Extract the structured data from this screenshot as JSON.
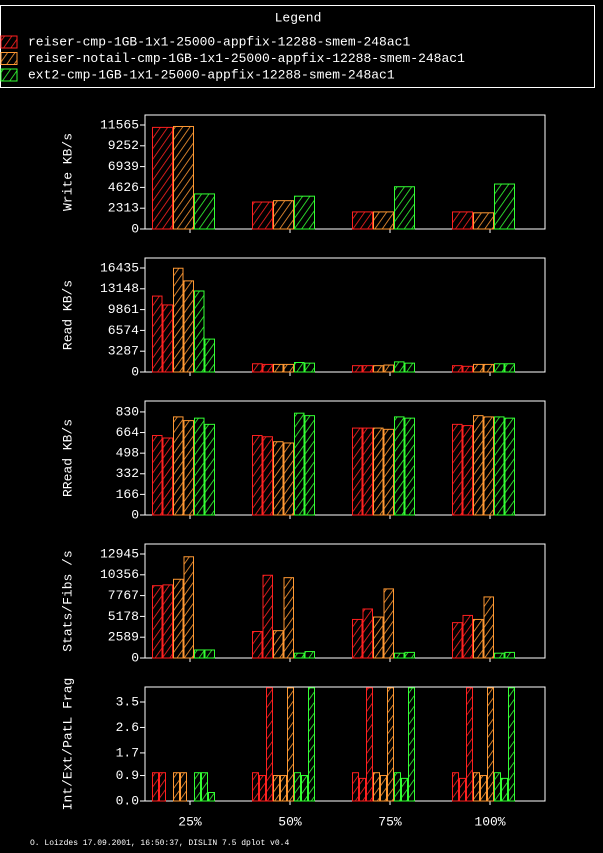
{
  "chart_data": [
    {
      "type": "bar",
      "legend_title": "Legend",
      "ylabel": "Write KB/s",
      "ylim": [
        0,
        12677
      ],
      "yticks": [
        0,
        2313,
        4626,
        6939,
        9252,
        11565
      ],
      "series": [
        {
          "name": "reiser-cmp-1GB-1x1-25000-appfix-12288-smem-248ac1",
          "color": "#ff2020",
          "values": [
            [
              11300
            ],
            [
              3000
            ],
            [
              1900
            ],
            [
              1900
            ]
          ]
        },
        {
          "name": "reiser-notail-cmp-1GB-1x1-25000-appfix-12288-smem-248ac1",
          "color": "#ff9933",
          "values": [
            [
              11400
            ],
            [
              3150
            ],
            [
              1900
            ],
            [
              1800
            ]
          ]
        },
        {
          "name": "ext2-cmp-1GB-1x1-25000-appfix-12288-smem-248ac1",
          "color": "#33ff33",
          "values": [
            [
              3900
            ],
            [
              3650
            ],
            [
              4700
            ],
            [
              5000
            ]
          ]
        }
      ]
    },
    {
      "type": "bar",
      "ylabel": "Read KB/s",
      "ylim": [
        0,
        18016
      ],
      "yticks": [
        0,
        3287,
        6574,
        9861,
        13148,
        16435
      ],
      "series": [
        {
          "color": "#ff2020",
          "values": [
            [
              12000,
              10600
            ],
            [
              1300,
              1200
            ],
            [
              1000,
              1000
            ],
            [
              1000,
              900
            ]
          ]
        },
        {
          "color": "#ff9933",
          "values": [
            [
              16400,
              14400
            ],
            [
              1200,
              1200
            ],
            [
              1000,
              1100
            ],
            [
              1200,
              1200
            ]
          ]
        },
        {
          "color": "#33ff33",
          "values": [
            [
              12800,
              5200
            ],
            [
              1500,
              1400
            ],
            [
              1600,
              1400
            ],
            [
              1300,
              1300
            ]
          ]
        }
      ]
    },
    {
      "type": "bar",
      "ylabel": "RRead KB/s",
      "ylim": [
        0,
        918
      ],
      "yticks": [
        0,
        166,
        332,
        498,
        664,
        830
      ],
      "series": [
        {
          "color": "#ff2020",
          "values": [
            [
              640,
              620
            ],
            [
              640,
              630
            ],
            [
              700,
              700
            ],
            [
              730,
              720
            ]
          ]
        },
        {
          "color": "#ff9933",
          "values": [
            [
              790,
              760
            ],
            [
              590,
              580
            ],
            [
              700,
              690
            ],
            [
              800,
              790
            ]
          ]
        },
        {
          "color": "#33ff33",
          "values": [
            [
              780,
              730
            ],
            [
              820,
              800
            ],
            [
              790,
              780
            ],
            [
              790,
              780
            ]
          ]
        }
      ]
    },
    {
      "type": "bar",
      "ylabel": "Stats/Fibs /s",
      "ylim": [
        0,
        14190
      ],
      "yticks": [
        0,
        2589,
        5178,
        7767,
        10356,
        12945
      ],
      "series": [
        {
          "color": "#ff2020",
          "values": [
            [
              9000,
              9100
            ],
            [
              3300,
              10300
            ],
            [
              4800,
              6100
            ],
            [
              4400,
              5300
            ]
          ]
        },
        {
          "color": "#ff9933",
          "values": [
            [
              9800,
              12600
            ],
            [
              3400,
              10000
            ],
            [
              5100,
              8600
            ],
            [
              4800,
              7600
            ]
          ]
        },
        {
          "color": "#33ff33",
          "values": [
            [
              1000,
              1000
            ],
            [
              600,
              800
            ],
            [
              600,
              700
            ],
            [
              600,
              700
            ]
          ]
        }
      ]
    },
    {
      "type": "bar",
      "ylabel": "Int/Ext/PatL Frag",
      "ylim": [
        0,
        4.03
      ],
      "yticks": [
        {
          "value": 0,
          "label": "0.0"
        },
        0.9,
        1.7,
        2.6,
        3.5
      ],
      "categories": [
        "25%",
        "50%",
        "75%",
        "100%"
      ],
      "footer": "O. Loizdes 17.09.2001, 16:50:37, DISLIN 7.5 dplot v0.4",
      "series": [
        {
          "color": "#ff2020",
          "values": [
            [
              1.0,
              1.0,
              0
            ],
            [
              1.0,
              0.9,
              4.0
            ],
            [
              1.0,
              0.8,
              4.0
            ],
            [
              1.0,
              0.8,
              4.0
            ]
          ]
        },
        {
          "color": "#ff9933",
          "values": [
            [
              1.0,
              1.0,
              0
            ],
            [
              0.9,
              0.9,
              4.0
            ],
            [
              1.0,
              0.9,
              4.0
            ],
            [
              1.0,
              0.9,
              4.0
            ]
          ]
        },
        {
          "color": "#33ff33",
          "values": [
            [
              1.0,
              1.0,
              0.3
            ],
            [
              1.0,
              0.9,
              4.0
            ],
            [
              1.0,
              0.8,
              4.0
            ],
            [
              1.0,
              0.8,
              4.0
            ]
          ]
        }
      ]
    }
  ]
}
